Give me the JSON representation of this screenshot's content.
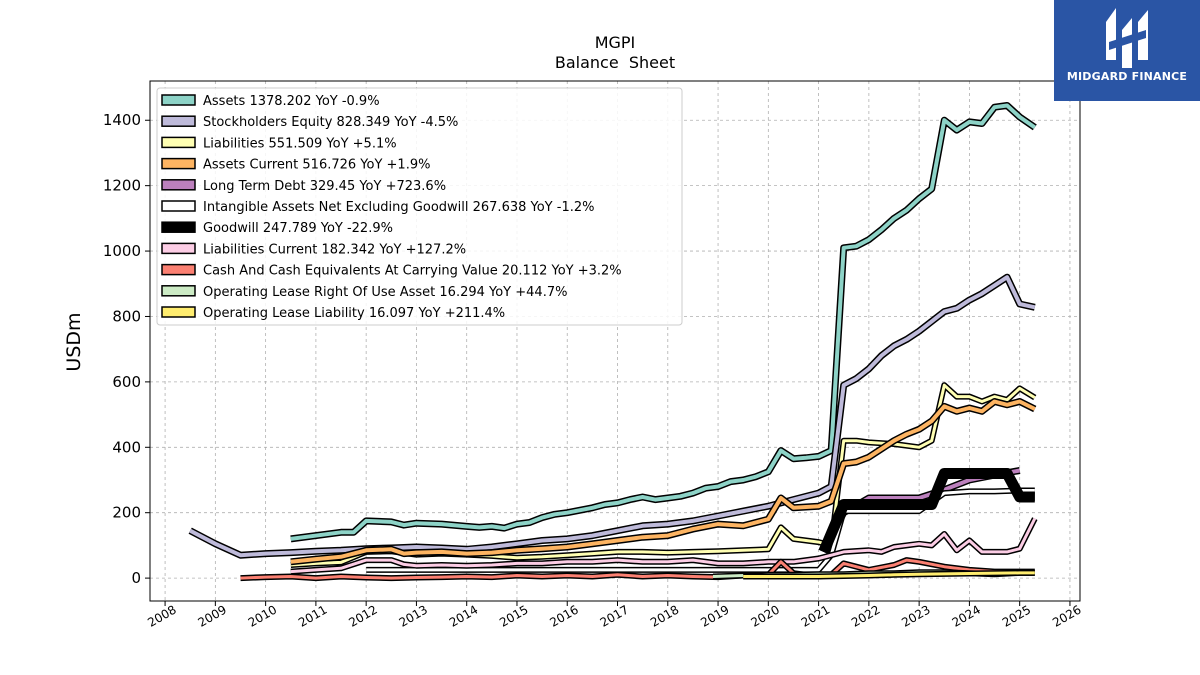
{
  "chart_data": {
    "type": "line",
    "title": "MGPI",
    "subtitle": "Balance  Sheet",
    "ylabel": "USDm",
    "xlabel": "",
    "xlim": [
      2007.7,
      2026.2
    ],
    "ylim": [
      -70,
      1520
    ],
    "x_ticks": [
      2008,
      2009,
      2010,
      2011,
      2012,
      2013,
      2014,
      2015,
      2016,
      2017,
      2018,
      2019,
      2020,
      2021,
      2022,
      2023,
      2024,
      2025,
      2026
    ],
    "y_ticks": [
      0,
      200,
      400,
      600,
      800,
      1000,
      1200,
      1400
    ],
    "grid": true,
    "legend_position": "upper-left",
    "series": [
      {
        "name": "Assets  1378.202 YoY -0.9%",
        "color": "#8dd3c7",
        "width": 4,
        "x": [
          2010.5,
          2011.5,
          2011.75,
          2012.0,
          2012.5,
          2012.75,
          2013.0,
          2013.5,
          2014.0,
          2014.25,
          2014.5,
          2014.75,
          2015.0,
          2015.25,
          2015.5,
          2015.75,
          2016.0,
          2016.5,
          2016.75,
          2017.0,
          2017.25,
          2017.5,
          2017.75,
          2018.0,
          2018.25,
          2018.5,
          2018.75,
          2019.0,
          2019.25,
          2019.5,
          2019.75,
          2020.0,
          2020.25,
          2020.5,
          2020.75,
          2021.0,
          2021.25,
          2021.5,
          2021.75,
          2022.0,
          2022.25,
          2022.5,
          2022.75,
          2023.0,
          2023.25,
          2023.5,
          2023.75,
          2024.0,
          2024.25,
          2024.5,
          2024.75,
          2025.0,
          2025.3
        ],
        "y": [
          120,
          140,
          140,
          175,
          172,
          162,
          168,
          165,
          158,
          155,
          158,
          153,
          165,
          170,
          185,
          195,
          200,
          215,
          225,
          230,
          240,
          248,
          240,
          245,
          250,
          260,
          275,
          280,
          295,
          300,
          310,
          325,
          390,
          365,
          368,
          372,
          390,
          1010,
          1015,
          1035,
          1065,
          1100,
          1125,
          1160,
          1190,
          1400,
          1370,
          1395,
          1390,
          1440,
          1445,
          1410,
          1378
        ]
      },
      {
        "name": "Stockholders Equity  828.349 YoY -4.5%",
        "color": "#bebada",
        "width": 4,
        "x": [
          2008.5,
          2009.0,
          2009.5,
          2010.0,
          2010.5,
          2011.0,
          2011.5,
          2012.0,
          2012.5,
          2013.0,
          2013.5,
          2014.0,
          2014.5,
          2015.0,
          2015.5,
          2016.0,
          2016.5,
          2017.0,
          2017.5,
          2018.0,
          2018.5,
          2019.0,
          2019.5,
          2020.0,
          2020.5,
          2021.0,
          2021.25,
          2021.5,
          2021.75,
          2022.0,
          2022.25,
          2022.5,
          2022.75,
          2023.0,
          2023.25,
          2023.5,
          2023.75,
          2024.0,
          2024.25,
          2024.5,
          2024.75,
          2025.0,
          2025.3
        ],
        "y": [
          145,
          105,
          70,
          75,
          78,
          82,
          85,
          90,
          92,
          95,
          92,
          88,
          95,
          105,
          115,
          120,
          130,
          145,
          160,
          165,
          175,
          190,
          205,
          220,
          240,
          260,
          280,
          590,
          610,
          640,
          680,
          710,
          730,
          755,
          785,
          815,
          825,
          850,
          870,
          895,
          920,
          838,
          828
        ]
      },
      {
        "name": "Liabilities  551.509 YoY +5.1%",
        "color": "#ffffb3",
        "width": 3,
        "x": [
          2010.5,
          2011.0,
          2011.5,
          2012.0,
          2012.5,
          2013.0,
          2013.5,
          2014.0,
          2014.5,
          2015.0,
          2015.5,
          2016.0,
          2016.5,
          2017.0,
          2017.5,
          2018.0,
          2018.5,
          2019.0,
          2019.5,
          2020.0,
          2020.25,
          2020.5,
          2021.0,
          2021.25,
          2021.5,
          2021.75,
          2022.0,
          2022.5,
          2023.0,
          2023.25,
          2023.5,
          2023.75,
          2024.0,
          2024.25,
          2024.5,
          2024.75,
          2025.0,
          2025.3
        ],
        "y": [
          40,
          45,
          48,
          80,
          82,
          72,
          75,
          72,
          68,
          62,
          65,
          70,
          75,
          80,
          80,
          78,
          80,
          82,
          85,
          88,
          155,
          120,
          110,
          100,
          420,
          420,
          415,
          410,
          400,
          420,
          590,
          555,
          555,
          540,
          555,
          545,
          580,
          552
        ]
      },
      {
        "name": "Assets Current  516.726 YoY +1.9%",
        "color": "#fdb462",
        "width": 4,
        "x": [
          2010.5,
          2011.0,
          2011.5,
          2012.0,
          2012.5,
          2012.75,
          2013.0,
          2013.5,
          2014.0,
          2014.5,
          2015.0,
          2015.5,
          2016.0,
          2016.5,
          2017.0,
          2017.5,
          2018.0,
          2018.5,
          2019.0,
          2019.5,
          2020.0,
          2020.25,
          2020.5,
          2021.0,
          2021.25,
          2021.5,
          2021.75,
          2022.0,
          2022.25,
          2022.5,
          2022.75,
          2023.0,
          2023.25,
          2023.5,
          2023.75,
          2024.0,
          2024.25,
          2024.5,
          2024.75,
          2025.0,
          2025.3
        ],
        "y": [
          50,
          58,
          65,
          85,
          88,
          75,
          78,
          80,
          75,
          78,
          85,
          90,
          95,
          105,
          115,
          125,
          130,
          150,
          165,
          160,
          180,
          245,
          215,
          220,
          235,
          350,
          355,
          370,
          395,
          420,
          440,
          455,
          480,
          525,
          510,
          520,
          510,
          540,
          530,
          540,
          517
        ]
      },
      {
        "name": "Long Term Debt  329.45 YoY +723.6%",
        "color": "#bc80bd",
        "width": 4,
        "x": [
          2021.1,
          2021.5,
          2022.0,
          2022.5,
          2023.0,
          2023.5,
          2024.0,
          2024.5,
          2025.0
        ],
        "y": [
          80,
          200,
          245,
          245,
          245,
          270,
          300,
          315,
          329
        ]
      },
      {
        "name": "Intangible Assets Net Excluding Goodwill  267.638 YoY -1.2%",
        "color": "#ffffff",
        "width": 3,
        "x": [
          2012.0,
          2013.0,
          2014.0,
          2015.0,
          2016.0,
          2017.0,
          2018.0,
          2019.0,
          2020.0,
          2021.0,
          2021.25,
          2021.5,
          2022.0,
          2022.5,
          2023.0,
          2023.5,
          2024.0,
          2024.5,
          2025.0,
          2025.3
        ],
        "y": [
          25,
          25,
          25,
          25,
          25,
          25,
          25,
          25,
          25,
          25,
          70,
          205,
          205,
          205,
          205,
          260,
          265,
          265,
          268,
          268
        ]
      },
      {
        "name": "Goodwill  247.789 YoY -22.9%",
        "color": "#000000",
        "width": 8,
        "x": [
          2021.1,
          2021.5,
          2022.0,
          2022.5,
          2023.0,
          2023.25,
          2023.5,
          2024.0,
          2024.5,
          2024.75,
          2025.0,
          2025.3
        ],
        "y": [
          80,
          225,
          225,
          225,
          225,
          225,
          320,
          320,
          320,
          320,
          248,
          248
        ]
      },
      {
        "name": "Liabilities Current  182.342 YoY +127.2%",
        "color": "#fccde5",
        "width": 3,
        "x": [
          2010.5,
          2011.0,
          2011.5,
          2012.0,
          2012.5,
          2012.75,
          2013.0,
          2013.5,
          2014.0,
          2014.5,
          2015.0,
          2015.5,
          2016.0,
          2016.5,
          2017.0,
          2017.5,
          2018.0,
          2018.5,
          2019.0,
          2019.5,
          2020.0,
          2020.5,
          2021.0,
          2021.5,
          2022.0,
          2022.25,
          2022.5,
          2023.0,
          2023.25,
          2023.5,
          2023.75,
          2024.0,
          2024.25,
          2024.5,
          2024.75,
          2025.0,
          2025.3
        ],
        "y": [
          20,
          25,
          30,
          55,
          55,
          42,
          38,
          40,
          38,
          40,
          45,
          45,
          50,
          50,
          55,
          50,
          50,
          55,
          45,
          45,
          50,
          50,
          60,
          80,
          85,
          80,
          95,
          105,
          100,
          135,
          85,
          115,
          80,
          80,
          80,
          90,
          182
        ]
      },
      {
        "name": "Cash And Cash Equivalents At Carrying Value  20.112 YoY +3.2%",
        "color": "#fb8072",
        "width": 3,
        "x": [
          2009.5,
          2010.0,
          2010.5,
          2011.0,
          2011.5,
          2012.0,
          2012.5,
          2013.0,
          2013.5,
          2014.0,
          2014.5,
          2015.0,
          2015.5,
          2016.0,
          2016.5,
          2017.0,
          2017.5,
          2018.0,
          2018.5,
          2019.0,
          2019.5,
          2020.0,
          2020.25,
          2020.5,
          2021.0,
          2021.25,
          2021.5,
          2022.0,
          2022.5,
          2022.75,
          2023.0,
          2023.5,
          2024.0,
          2024.5,
          2025.0,
          2025.3
        ],
        "y": [
          0,
          3,
          5,
          0,
          5,
          2,
          0,
          2,
          3,
          5,
          3,
          8,
          5,
          8,
          5,
          10,
          5,
          8,
          5,
          3,
          8,
          10,
          50,
          15,
          5,
          10,
          45,
          25,
          40,
          55,
          50,
          35,
          25,
          20,
          20,
          20
        ]
      },
      {
        "name": "Operating Lease Right Of Use Asset  16.294 YoY +44.7%",
        "color": "#ccebc5",
        "width": 3,
        "x": [
          2018.9,
          2019.5,
          2020.0,
          2020.5,
          2021.0,
          2021.5,
          2022.0,
          2022.5,
          2023.0,
          2023.5,
          2024.0,
          2024.5,
          2025.0,
          2025.3
        ],
        "y": [
          5,
          8,
          10,
          10,
          12,
          12,
          15,
          15,
          18,
          18,
          15,
          12,
          16,
          16
        ]
      },
      {
        "name": "Operating Lease Liability  16.097 YoY +211.4%",
        "color": "#ffed6f",
        "width": 3,
        "x": [
          2019.5,
          2020.0,
          2021.0,
          2022.0,
          2022.5,
          2023.0,
          2024.0,
          2025.0,
          2025.3
        ],
        "y": [
          5,
          5,
          5,
          8,
          10,
          12,
          14,
          16,
          16
        ]
      }
    ]
  },
  "brand": {
    "name": "MIDGARD FINANCE",
    "bg_color": "#2a55a5"
  }
}
